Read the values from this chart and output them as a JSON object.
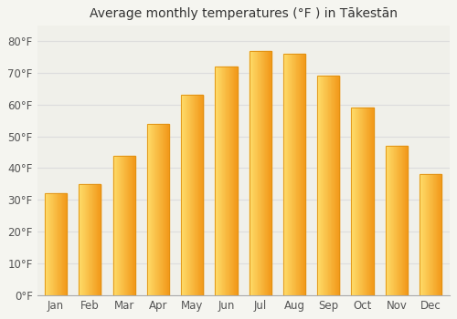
{
  "title": "Average monthly temperatures (°F ) in Tākestān",
  "months": [
    "Jan",
    "Feb",
    "Mar",
    "Apr",
    "May",
    "Jun",
    "Jul",
    "Aug",
    "Sep",
    "Oct",
    "Nov",
    "Dec"
  ],
  "values": [
    32,
    35,
    44,
    54,
    63,
    72,
    77,
    76,
    69,
    59,
    47,
    38
  ],
  "bar_color_left": "#FFD966",
  "bar_color_right": "#F4A020",
  "bar_edge_color": "#E09010",
  "ylim": [
    0,
    85
  ],
  "yticks": [
    0,
    10,
    20,
    30,
    40,
    50,
    60,
    70,
    80
  ],
  "ytick_labels": [
    "0°F",
    "10°F",
    "20°F",
    "30°F",
    "40°F",
    "50°F",
    "60°F",
    "70°F",
    "80°F"
  ],
  "background_color": "#f5f5f0",
  "plot_bg_color": "#f0f0ea",
  "grid_color": "#dddddd",
  "title_fontsize": 10,
  "tick_fontsize": 8.5
}
